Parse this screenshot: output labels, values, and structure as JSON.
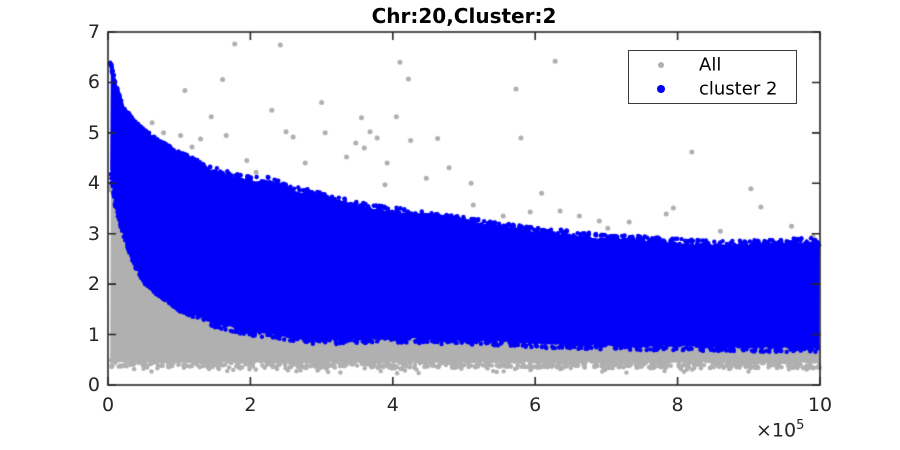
{
  "title": "Chr:20,Cluster:2",
  "colors": {
    "background": "#ffffff",
    "axis": "#262626",
    "all_gray": "#b0b0b0",
    "cluster_blue": "#0000fa",
    "legend_border": "#3c3c3c",
    "title_color": "#000000"
  },
  "chart_data": {
    "type": "scatter",
    "title": "Chr:20,Cluster:2",
    "x_axis": {
      "range": [
        0,
        10
      ],
      "ticks": [
        "0",
        "2",
        "4",
        "6",
        "8",
        "10"
      ],
      "tick_values": [
        0,
        2,
        4,
        6,
        8,
        10
      ],
      "multiplier": "×10",
      "multiplier_exponent": "5"
    },
    "y_axis": {
      "range": [
        0,
        7
      ],
      "ticks": [
        "0",
        "1",
        "2",
        "3",
        "4",
        "5",
        "6",
        "7"
      ],
      "tick_values": [
        0,
        1,
        2,
        3,
        4,
        5,
        6,
        7
      ]
    },
    "legend": {
      "position": "top-right",
      "entries": [
        {
          "label": "All",
          "color": "#b0b0b0",
          "marker_diameter": 6
        },
        {
          "label": "cluster 2",
          "color": "#0000fa",
          "marker_diameter": 8
        }
      ]
    },
    "series": [
      {
        "name": "All",
        "color": "#b0b0b0",
        "band": {
          "upper_x": [
            0.03,
            0.1,
            0.2,
            0.35,
            0.5,
            0.7,
            1.0,
            1.5,
            2.0,
            2.5,
            3.0,
            3.5,
            4.0,
            5.0,
            6.0,
            7.0,
            8.0,
            9.0,
            10.0
          ],
          "upper_y": [
            3.95,
            3.85,
            3.38,
            2.78,
            2.38,
            2.13,
            1.83,
            1.5,
            1.33,
            1.23,
            1.16,
            1.18,
            1.2,
            1.16,
            1.1,
            1.06,
            1.04,
            1.02,
            1.0
          ],
          "lower_x": [
            0.03,
            10.0
          ],
          "lower_y": [
            0.44,
            0.43
          ]
        },
        "outliers": [
          [
            0.62,
            5.2
          ],
          [
            0.78,
            5.0
          ],
          [
            0.9,
            4.62
          ],
          [
            1.02,
            4.95
          ],
          [
            1.08,
            5.84
          ],
          [
            1.18,
            4.72
          ],
          [
            1.3,
            4.88
          ],
          [
            1.45,
            5.32
          ],
          [
            1.61,
            6.06
          ],
          [
            1.66,
            4.95
          ],
          [
            1.78,
            6.76
          ],
          [
            1.95,
            4.45
          ],
          [
            2.08,
            4.22
          ],
          [
            2.3,
            5.45
          ],
          [
            2.42,
            6.74
          ],
          [
            2.5,
            5.02
          ],
          [
            2.6,
            4.92
          ],
          [
            2.77,
            4.4
          ],
          [
            3.0,
            5.6
          ],
          [
            3.05,
            5.0
          ],
          [
            3.35,
            4.52
          ],
          [
            3.48,
            4.8
          ],
          [
            3.56,
            5.3
          ],
          [
            3.6,
            4.7
          ],
          [
            3.68,
            5.02
          ],
          [
            3.78,
            4.9
          ],
          [
            3.89,
            3.97
          ],
          [
            3.92,
            4.4
          ],
          [
            4.05,
            5.32
          ],
          [
            4.1,
            6.4
          ],
          [
            4.22,
            6.07
          ],
          [
            4.25,
            4.85
          ],
          [
            4.47,
            4.1
          ],
          [
            4.63,
            4.89
          ],
          [
            4.79,
            4.31
          ],
          [
            5.1,
            4.0
          ],
          [
            5.13,
            3.57
          ],
          [
            5.55,
            3.35
          ],
          [
            5.73,
            5.87
          ],
          [
            5.8,
            4.9
          ],
          [
            5.93,
            3.43
          ],
          [
            6.09,
            3.8
          ],
          [
            6.28,
            6.42
          ],
          [
            6.35,
            3.45
          ],
          [
            6.62,
            3.35
          ],
          [
            6.9,
            3.25
          ],
          [
            7.02,
            3.11
          ],
          [
            7.32,
            3.23
          ],
          [
            7.54,
            2.95
          ],
          [
            7.84,
            3.39
          ],
          [
            7.94,
            3.51
          ],
          [
            8.2,
            4.62
          ],
          [
            8.6,
            3.05
          ],
          [
            9.03,
            3.89
          ],
          [
            9.17,
            3.53
          ],
          [
            9.6,
            3.15
          ],
          [
            9.9,
            2.95
          ]
        ]
      },
      {
        "name": "cluster 2",
        "color": "#0000fa",
        "band": {
          "upper_x": [
            0.03,
            0.1,
            0.2,
            0.35,
            0.5,
            0.7,
            1.0,
            1.5,
            2.0,
            2.3,
            2.5,
            3.0,
            3.5,
            4.0,
            4.5,
            5.0,
            5.5,
            6.0,
            6.5,
            7.0,
            7.5,
            8.0,
            8.5,
            9.0,
            9.5,
            10.0
          ],
          "upper_y": [
            6.45,
            5.95,
            5.5,
            5.2,
            5.0,
            4.8,
            4.55,
            4.25,
            4.05,
            4.05,
            3.9,
            3.75,
            3.55,
            3.45,
            3.35,
            3.25,
            3.15,
            3.05,
            2.98,
            2.9,
            2.88,
            2.82,
            2.78,
            2.8,
            2.82,
            2.85
          ],
          "lower_x": [
            0.03,
            0.1,
            0.2,
            0.35,
            0.5,
            0.7,
            1.0,
            1.5,
            2.0,
            2.5,
            3.0,
            3.5,
            4.0,
            5.0,
            6.0,
            7.0,
            8.0,
            9.0,
            10.0
          ],
          "lower_y": [
            4.3,
            3.6,
            3.1,
            2.5,
            2.1,
            1.85,
            1.55,
            1.22,
            1.05,
            0.95,
            0.88,
            0.9,
            0.92,
            0.88,
            0.82,
            0.78,
            0.76,
            0.74,
            0.72
          ]
        }
      }
    ],
    "render": {
      "seed": 11,
      "dot_radius": 2.2,
      "outlier_radius": 2.5,
      "edge_jitter": 0.08,
      "edge_dot_counts": {
        "blue_upper": 750,
        "blue_lower": 650,
        "gray_upper": 550,
        "gray_bottom": 750,
        "gray_stragglers": 170,
        "left_extra": 240
      }
    }
  }
}
